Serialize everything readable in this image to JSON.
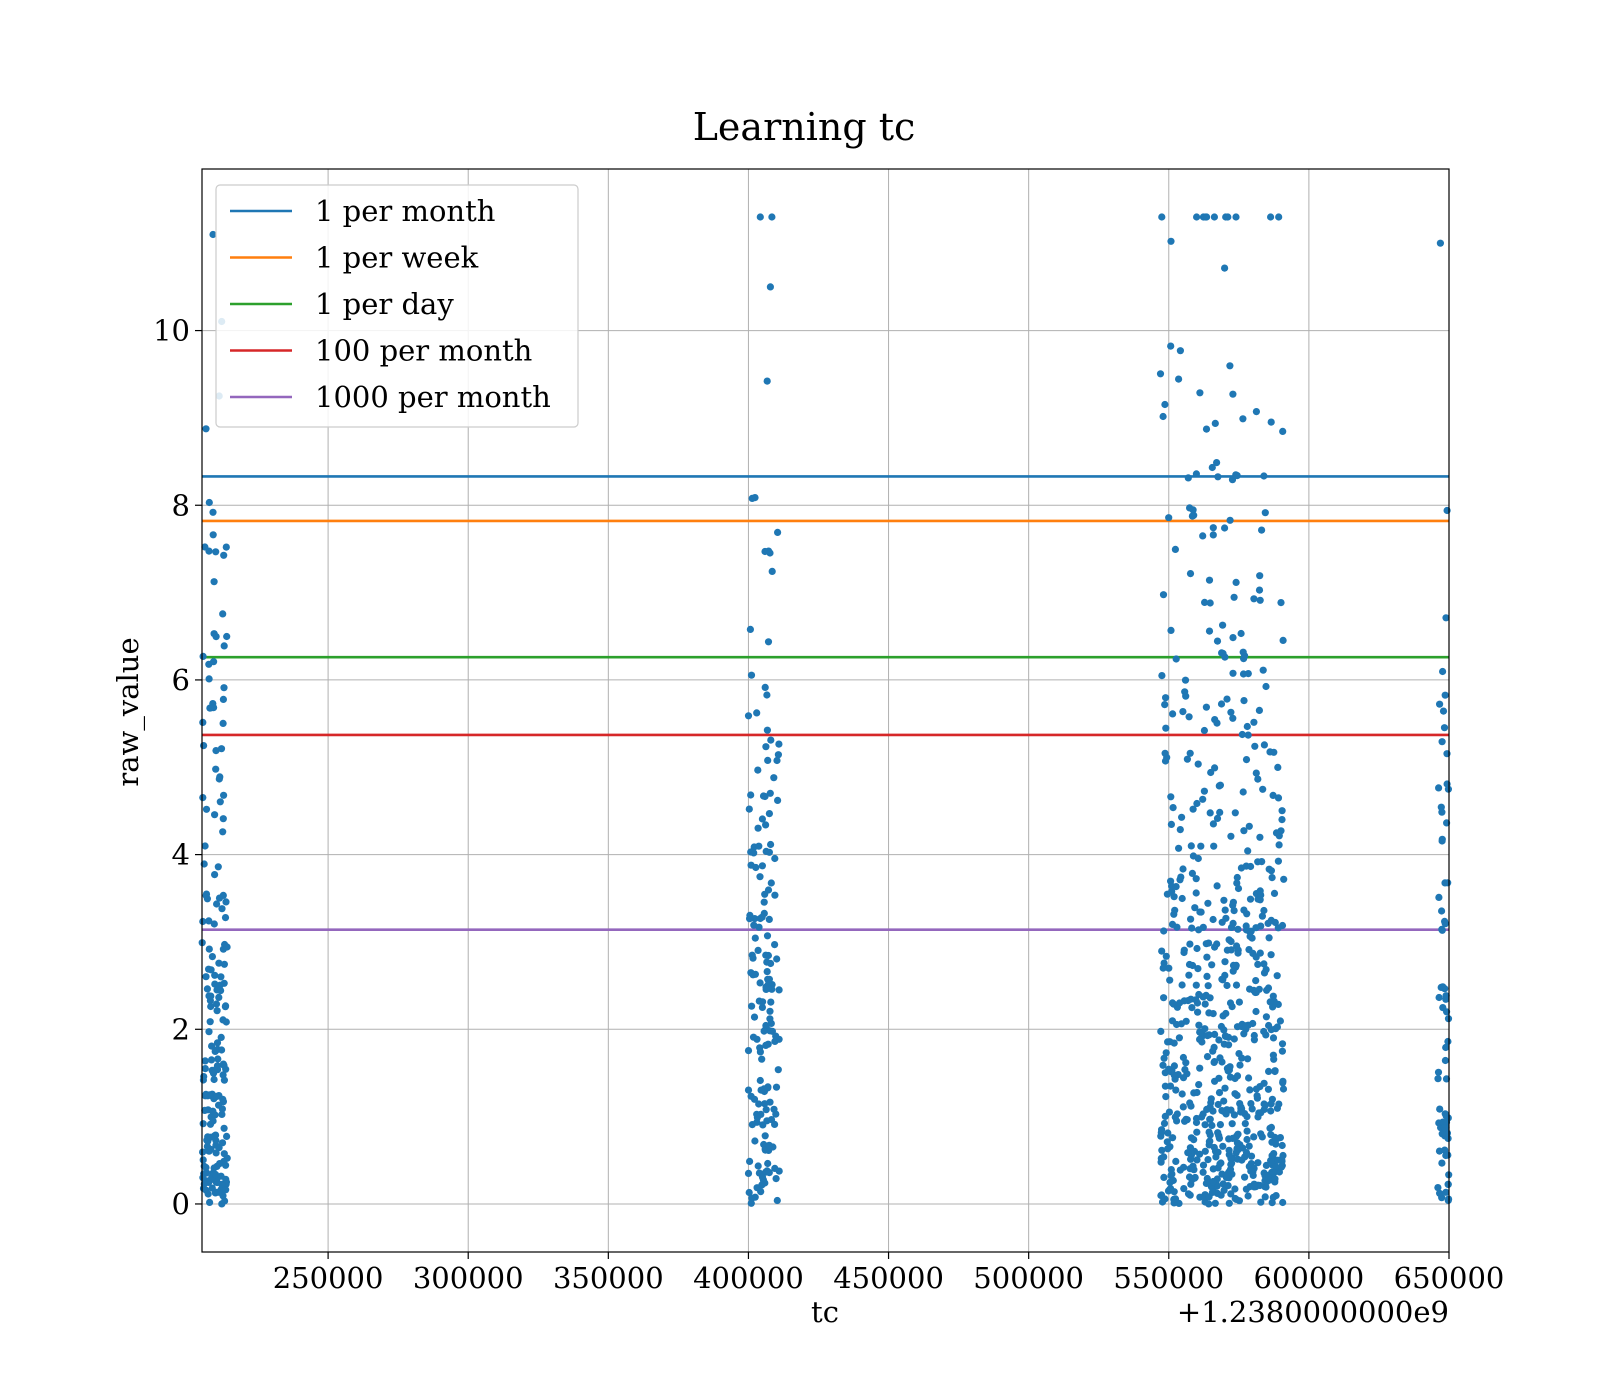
{
  "chart_data": {
    "type": "scatter",
    "title": "Learning tc",
    "xlabel": "tc",
    "ylabel": "raw_value",
    "x_offset_label": "+1.2380000000e9",
    "xlim": [
      205000,
      650000
    ],
    "ylim": [
      -0.55,
      11.85
    ],
    "x_ticks": [
      250000,
      300000,
      350000,
      400000,
      450000,
      500000,
      550000,
      600000,
      650000
    ],
    "x_tick_labels": [
      "250000",
      "300000",
      "350000",
      "400000",
      "450000",
      "500000",
      "550000",
      "600000",
      "650000"
    ],
    "y_ticks": [
      0,
      2,
      4,
      6,
      8,
      10
    ],
    "y_tick_labels": [
      "0",
      "2",
      "4",
      "6",
      "8",
      "10"
    ],
    "grid": true,
    "legend_position": "top-left",
    "point_color": "#1f77b4",
    "reference_lines": [
      {
        "name": "1 per month",
        "y": 8.33,
        "color": "#1f77b4"
      },
      {
        "name": "1 per week",
        "y": 7.82,
        "color": "#ff7f0e"
      },
      {
        "name": "1 per day",
        "y": 6.26,
        "color": "#2ca02c"
      },
      {
        "name": "100 per month",
        "y": 5.37,
        "color": "#d62728"
      },
      {
        "name": "1000 per month",
        "y": 3.14,
        "color": "#9467bd"
      }
    ],
    "clusters": [
      {
        "x_min": 205000,
        "x_max": 214000,
        "count": 200,
        "y_max": 11.1
      },
      {
        "x_min": 400000,
        "x_max": 411000,
        "count": 170,
        "y_max": 11.3
      },
      {
        "x_min": 547000,
        "x_max": 591000,
        "count": 700,
        "y_max": 11.3
      },
      {
        "x_min": 646000,
        "x_max": 650000,
        "count": 70,
        "y_max": 11.0
      }
    ]
  }
}
